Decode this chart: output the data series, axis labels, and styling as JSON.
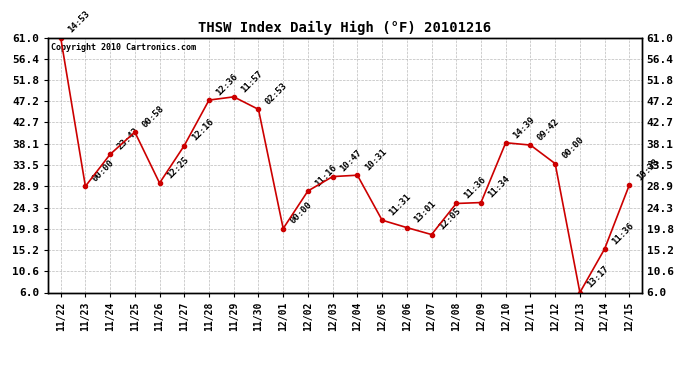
{
  "title": "THSW Index Daily High (°F) 20101216",
  "copyright": "Copyright 2010 Cartronics.com",
  "background_color": "#ffffff",
  "line_color": "#cc0000",
  "marker_color": "#cc0000",
  "grid_color": "#bbbbbb",
  "text_color": "#000000",
  "dates": [
    "11/22",
    "11/23",
    "11/24",
    "11/25",
    "11/26",
    "11/27",
    "11/28",
    "11/29",
    "11/30",
    "12/01",
    "12/02",
    "12/03",
    "12/04",
    "12/05",
    "12/06",
    "12/07",
    "12/08",
    "12/09",
    "12/10",
    "12/11",
    "12/12",
    "12/13",
    "12/14",
    "12/15"
  ],
  "values": [
    61.0,
    28.9,
    35.8,
    40.6,
    29.6,
    37.7,
    47.5,
    48.2,
    45.5,
    19.8,
    27.9,
    31.0,
    31.3,
    21.6,
    20.0,
    18.5,
    25.2,
    25.4,
    38.3,
    37.8,
    33.8,
    6.0,
    15.4,
    29.2
  ],
  "annotations": [
    "14:53",
    "00:00",
    "23:43",
    "00:58",
    "12:25",
    "12:16",
    "12:36",
    "11:57",
    "02:53",
    "00:00",
    "11:16",
    "10:47",
    "10:31",
    "11:31",
    "13:01",
    "12:05",
    "11:36",
    "11:34",
    "14:39",
    "09:42",
    "00:00",
    "13:17",
    "11:36",
    "10:38"
  ],
  "ylim": [
    6.0,
    61.0
  ],
  "yticks": [
    6.0,
    10.6,
    15.2,
    19.8,
    24.3,
    28.9,
    33.5,
    38.1,
    42.7,
    47.2,
    51.8,
    56.4,
    61.0
  ],
  "xlabel_fontsize": 7,
  "ylabel_fontsize": 8,
  "title_fontsize": 10,
  "annotation_fontsize": 6.5,
  "copyright_fontsize": 6
}
